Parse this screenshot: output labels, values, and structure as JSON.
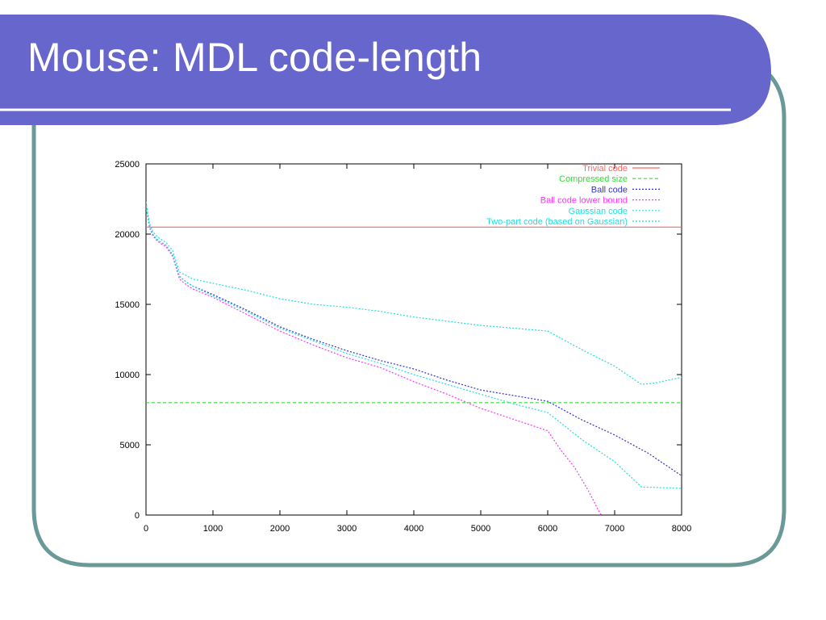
{
  "slide": {
    "title": "Mouse: MDL code-length",
    "header_color": "#6666cc",
    "border_color": "#6a9a98"
  },
  "chart_data": {
    "type": "line",
    "title": "",
    "xlabel": "",
    "ylabel": "",
    "xlim": [
      0,
      8000
    ],
    "ylim": [
      0,
      25000
    ],
    "x_ticks": [
      0,
      1000,
      2000,
      3000,
      4000,
      5000,
      6000,
      7000,
      8000
    ],
    "y_ticks": [
      0,
      5000,
      10000,
      15000,
      20000,
      25000
    ],
    "x_tick_labels": [
      "0",
      "1000",
      "2000",
      "3000",
      "4000",
      "5000",
      "6000",
      "7000",
      "8000"
    ],
    "y_tick_labels": [
      "0",
      "5000",
      "10000",
      "15000",
      "20000",
      "25000"
    ],
    "grid": false,
    "legend_position": "top-right",
    "series": [
      {
        "name": "Trivial code",
        "color": "#ff6666",
        "style": "solid",
        "x": [
          0,
          8000
        ],
        "y": [
          20500,
          20500
        ]
      },
      {
        "name": "Compressed size",
        "color": "#33dd33",
        "style": "dashed",
        "x": [
          0,
          8000
        ],
        "y": [
          8000,
          8000
        ]
      },
      {
        "name": "Ball code",
        "color": "#3333cc",
        "style": "dotted",
        "x": [
          0,
          50,
          100,
          150,
          200,
          300,
          400,
          500,
          600,
          700,
          1000,
          1500,
          2000,
          2500,
          3000,
          3500,
          4000,
          4500,
          5000,
          5500,
          6000,
          6500,
          7000,
          7500,
          8000
        ],
        "y": [
          22000,
          20600,
          20000,
          19700,
          19500,
          19200,
          18500,
          17000,
          16600,
          16300,
          15700,
          14600,
          13400,
          12500,
          11700,
          11000,
          10400,
          9600,
          8900,
          8500,
          8100,
          6800,
          5700,
          4400,
          2800
        ]
      },
      {
        "name": "Ball code lower bound",
        "color": "#ff33ff",
        "style": "dotted",
        "x": [
          0,
          50,
          100,
          150,
          200,
          300,
          400,
          500,
          600,
          700,
          1000,
          1500,
          2000,
          2500,
          3000,
          3500,
          4000,
          4500,
          5000,
          5500,
          6000,
          6200,
          6400,
          6600,
          6750,
          6800
        ],
        "y": [
          22000,
          20500,
          19900,
          19600,
          19400,
          19100,
          18400,
          16800,
          16400,
          16100,
          15500,
          14300,
          13100,
          12100,
          11200,
          10500,
          9500,
          8600,
          7600,
          6800,
          6000,
          4600,
          3400,
          1800,
          400,
          0
        ]
      },
      {
        "name": "Gaussian code",
        "color": "#22dddd",
        "style": "dotted",
        "x": [
          0,
          50,
          100,
          150,
          200,
          300,
          400,
          500,
          600,
          700,
          1000,
          1500,
          2000,
          2500,
          3000,
          3500,
          4000,
          4500,
          5000,
          5500,
          6000,
          6500,
          7000,
          7400,
          8000
        ],
        "y": [
          22000,
          20600,
          20000,
          19700,
          19500,
          19200,
          18500,
          17000,
          16600,
          16300,
          15600,
          14500,
          13300,
          12400,
          11500,
          10800,
          10000,
          9300,
          8600,
          7900,
          7300,
          5400,
          3800,
          2000,
          1900
        ]
      },
      {
        "name": "Two-part code (based on Gaussian)",
        "color": "#22dddd",
        "style": "dotted",
        "x": [
          0,
          50,
          100,
          150,
          200,
          300,
          400,
          500,
          700,
          1000,
          1500,
          2000,
          2500,
          3000,
          3500,
          4000,
          4500,
          5000,
          5500,
          6000,
          6500,
          7000,
          7400,
          7600,
          8000
        ],
        "y": [
          22300,
          20800,
          20200,
          19900,
          19700,
          19400,
          18800,
          17300,
          16800,
          16500,
          16000,
          15400,
          15000,
          14800,
          14500,
          14100,
          13800,
          13500,
          13300,
          13100,
          11800,
          10600,
          9300,
          9400,
          9800
        ]
      }
    ]
  }
}
